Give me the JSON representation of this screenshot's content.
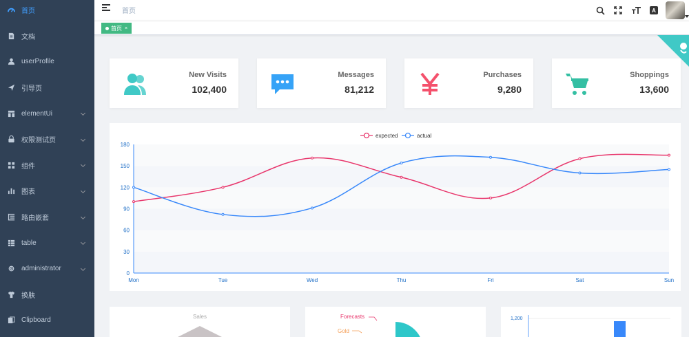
{
  "sidebar": {
    "items": [
      {
        "label": "首页",
        "icon": "dashboard-icon",
        "active": true
      },
      {
        "label": "文档",
        "icon": "document-icon"
      },
      {
        "label": "userProfile",
        "icon": "user-icon"
      },
      {
        "label": "引导页",
        "icon": "guide-icon"
      },
      {
        "label": "elementUi",
        "icon": "component-icon",
        "expandable": true
      },
      {
        "label": "权限测试页",
        "icon": "lock-icon",
        "expandable": true
      },
      {
        "label": "组件",
        "icon": "grid-icon",
        "expandable": true
      },
      {
        "label": "图表",
        "icon": "chart-icon",
        "expandable": true
      },
      {
        "label": "路由嵌套",
        "icon": "nested-icon",
        "expandable": true
      },
      {
        "label": "table",
        "icon": "table-icon",
        "expandable": true
      },
      {
        "label": "administrator",
        "icon": "gear-icon",
        "expandable": true
      },
      {
        "label": "换肤",
        "icon": "shirt-icon"
      },
      {
        "label": "Clipboard",
        "icon": "clipboard-icon"
      }
    ]
  },
  "navbar": {
    "breadcrumb": "首页",
    "size_icon_text": "A"
  },
  "tags": [
    {
      "label": "首页",
      "close": "×"
    }
  ],
  "panels": [
    {
      "title": "New Visits",
      "value": "102,400",
      "icon": "people-icon",
      "color": "#40c9c6"
    },
    {
      "title": "Messages",
      "value": "81,212",
      "icon": "message-icon",
      "color": "#36a3f7"
    },
    {
      "title": "Purchases",
      "value": "9,280",
      "icon": "money-icon",
      "color": "#f4516c"
    },
    {
      "title": "Shoppings",
      "value": "13,600",
      "icon": "shopping-icon",
      "color": "#34bfa3"
    }
  ],
  "chart_data": {
    "type": "line",
    "categories": [
      "Mon",
      "Tue",
      "Wed",
      "Thu",
      "Fri",
      "Sat",
      "Sun"
    ],
    "series": [
      {
        "name": "expected",
        "values": [
          100,
          120,
          161,
          134,
          105,
          160,
          165
        ],
        "color": "#e8356b"
      },
      {
        "name": "actual",
        "values": [
          120,
          82,
          91,
          154,
          162,
          140,
          145
        ],
        "color": "#3888fa"
      }
    ],
    "ylim": [
      0,
      180
    ],
    "yticks": [
      "0",
      "30",
      "60",
      "90",
      "120",
      "150",
      "180"
    ],
    "legend": "top-center",
    "grid": true
  },
  "bottom": {
    "sales_label": "Sales",
    "funnel_labels": [
      "Forecasts",
      "Gold"
    ],
    "bar_tick": "1,200"
  }
}
